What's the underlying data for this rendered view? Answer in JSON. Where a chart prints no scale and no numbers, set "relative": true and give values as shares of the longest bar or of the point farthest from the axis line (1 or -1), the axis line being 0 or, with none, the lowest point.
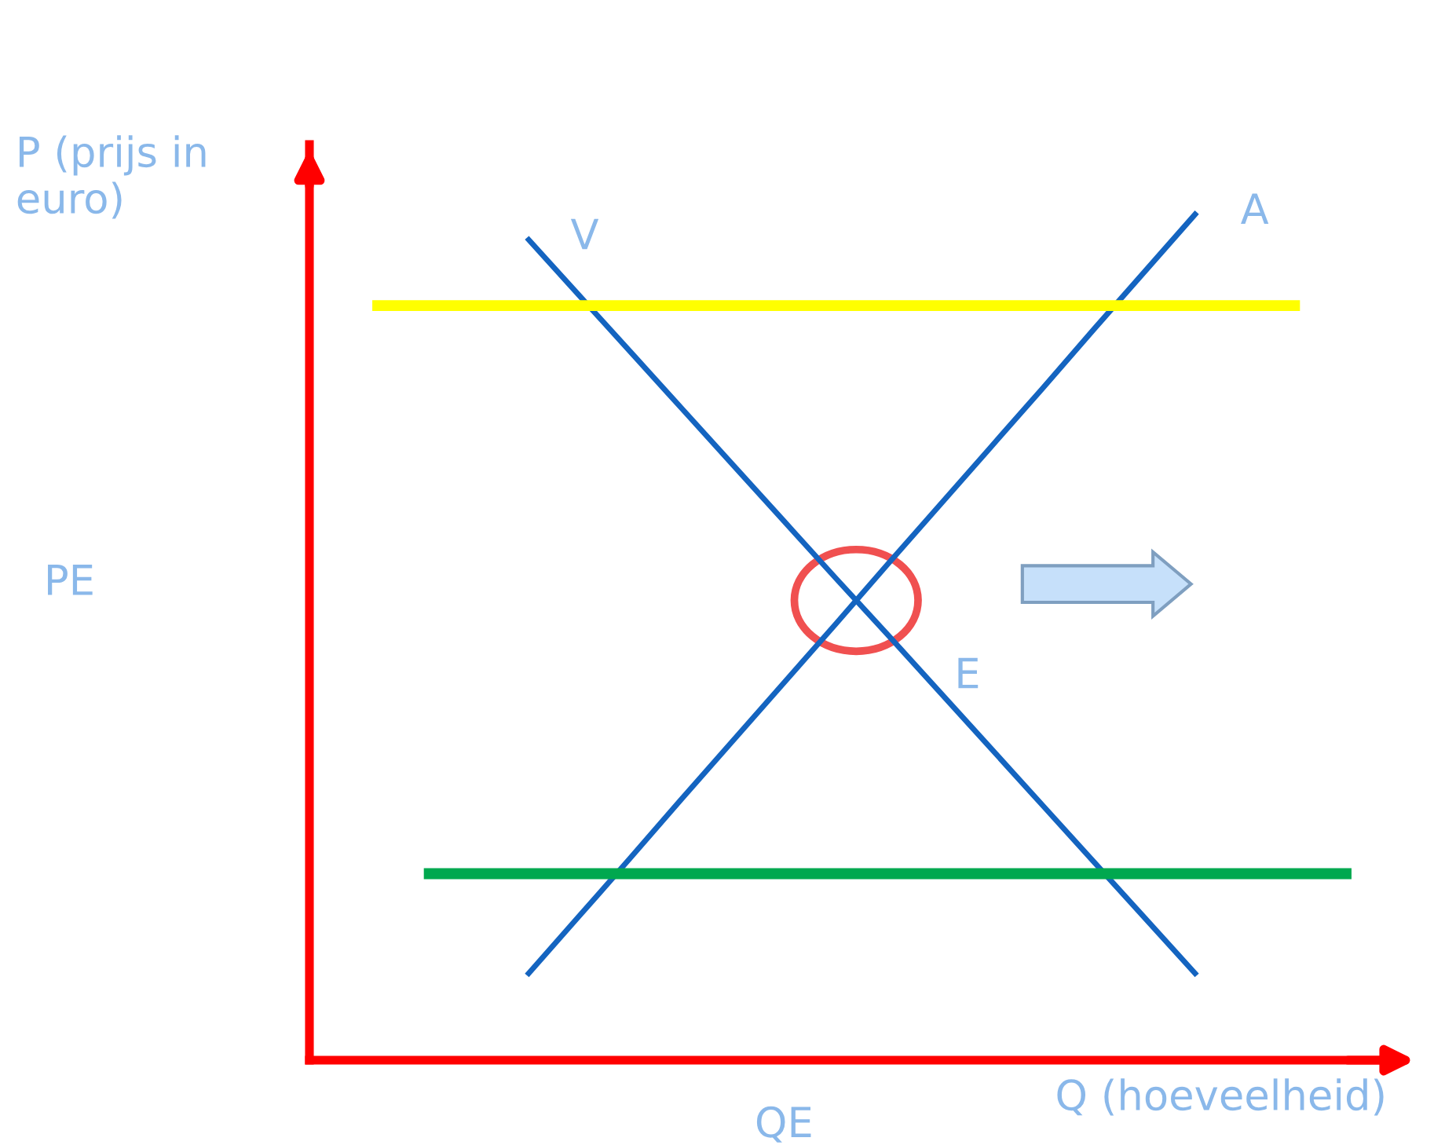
{
  "chart_data": {
    "type": "line",
    "relative": true,
    "xlabel": "Q (hoeveelheid)",
    "ylabel": "P (prijs in\neuro)",
    "categories": [
      null,
      null,
      null,
      null,
      null,
      null,
      null,
      null,
      null,
      null,
      null,
      null,
      null,
      null,
      null,
      null,
      null,
      null,
      null,
      null
    ],
    "series": [
      {
        "name": "V",
        "color": "#1464c0",
        "values": [
          null,
          null,
          null,
          0.97,
          0.903,
          0.836,
          0.769,
          0.702,
          0.635,
          0.568,
          0.502,
          0.435,
          0.368,
          0.301,
          0.234,
          0.167,
          0.1,
          null,
          null,
          null
        ]
      },
      {
        "name": "A",
        "color": "#1464c0",
        "values": [
          null,
          null,
          null,
          0.1,
          0.169,
          0.238,
          0.308,
          0.377,
          0.446,
          0.515,
          0.585,
          0.654,
          0.723,
          0.792,
          0.862,
          0.931,
          1.0,
          null,
          null,
          null
        ]
      },
      {
        "color": "#ffff00",
        "values": [
          0.89,
          0.89,
          0.89,
          0.89,
          0.89,
          0.89,
          0.89,
          0.89,
          0.89,
          0.89,
          0.89,
          0.89,
          0.89,
          0.89,
          0.89,
          0.89,
          0.89,
          0.89,
          0.89,
          null
        ]
      },
      {
        "color": "#00a84f",
        "values": [
          null,
          0.22,
          0.22,
          0.22,
          0.22,
          0.22,
          0.22,
          0.22,
          0.22,
          0.22,
          0.22,
          0.22,
          0.22,
          0.22,
          0.22,
          0.22,
          0.22,
          0.22,
          0.22,
          0.22
        ]
      }
    ],
    "annotations": [
      "E",
      "PE",
      "QE"
    ]
  }
}
